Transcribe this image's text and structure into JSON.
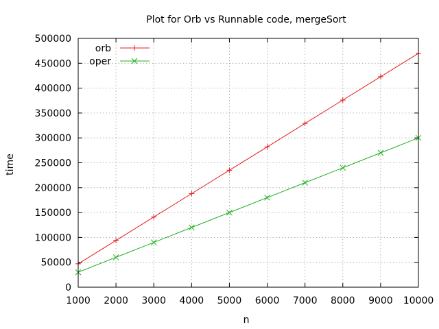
{
  "chart_data": {
    "type": "line",
    "title": "Plot for Orb vs Runnable code, mergeSort",
    "xlabel": "n",
    "ylabel": "time",
    "xlim": [
      1000,
      10000
    ],
    "ylim": [
      0,
      500000
    ],
    "x_ticks": [
      1000,
      2000,
      3000,
      4000,
      5000,
      6000,
      7000,
      8000,
      9000,
      10000
    ],
    "y_ticks": [
      0,
      50000,
      100000,
      150000,
      200000,
      250000,
      300000,
      350000,
      400000,
      450000,
      500000
    ],
    "grid": true,
    "legend_position": "top-left",
    "x": [
      1000,
      2000,
      3000,
      4000,
      5000,
      6000,
      7000,
      8000,
      9000,
      10000
    ],
    "series": [
      {
        "name": "orb",
        "color": "#e41a1c",
        "marker": "plus",
        "values": [
          47000,
          94000,
          141000,
          188000,
          235000,
          282000,
          329000,
          376000,
          423000,
          470000
        ]
      },
      {
        "name": "oper",
        "color": "#1fb01f",
        "marker": "x",
        "values": [
          30000,
          60000,
          90000,
          120000,
          150000,
          180000,
          210000,
          240000,
          270000,
          300000
        ]
      }
    ]
  }
}
